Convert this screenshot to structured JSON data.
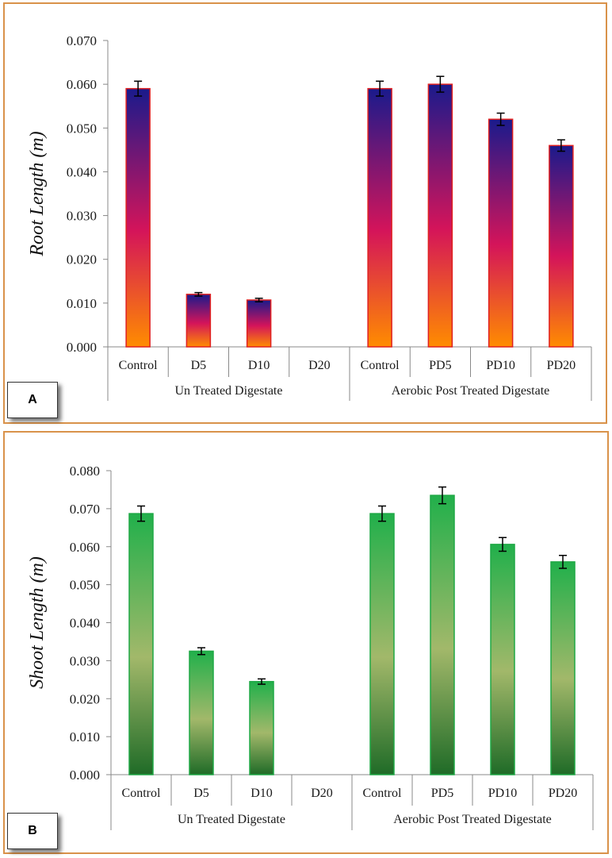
{
  "chart_data": [
    {
      "type": "bar",
      "panel_label": "A",
      "ylabel": "Root Length (m)",
      "ylim": [
        0,
        0.07
      ],
      "yticks": [
        "0.000",
        "0.010",
        "0.020",
        "0.030",
        "0.040",
        "0.050",
        "0.060",
        "0.070"
      ],
      "categories": [
        "Control",
        "D5",
        "D10",
        "D20",
        "Control",
        "PD5",
        "PD10",
        "PD20"
      ],
      "values": [
        0.059,
        0.012,
        0.0107,
        0,
        0.059,
        0.06,
        0.052,
        0.046
      ],
      "errors": [
        0.0017,
        0.0004,
        0.0004,
        0,
        0.0017,
        0.0018,
        0.0014,
        0.0013
      ],
      "groups": [
        {
          "label": "Un Treated Digestate",
          "count": 4
        },
        {
          "label": "Aerobic Post Treated Digestate",
          "count": 4
        }
      ],
      "colors": {
        "bar_top": "#1a1a8c",
        "bar_mid": "#d4145a",
        "bar_bottom": "#ff8c00",
        "bar_border": "#e02020"
      }
    },
    {
      "type": "bar",
      "panel_label": "B",
      "ylabel": "Shoot Length (m)",
      "ylim": [
        0,
        0.08
      ],
      "yticks": [
        "0.000",
        "0.010",
        "0.020",
        "0.030",
        "0.040",
        "0.050",
        "0.060",
        "0.070",
        "0.080"
      ],
      "categories": [
        "Control",
        "D5",
        "D10",
        "D20",
        "Control",
        "PD5",
        "PD10",
        "PD20"
      ],
      "values": [
        0.0687,
        0.0325,
        0.0245,
        0,
        0.0687,
        0.0735,
        0.0606,
        0.056
      ],
      "errors": [
        0.002,
        0.0009,
        0.0007,
        0,
        0.002,
        0.0022,
        0.0018,
        0.0017
      ],
      "groups": [
        {
          "label": "Un Treated Digestate",
          "count": 4
        },
        {
          "label": "Aerobic Post Treated Digestate",
          "count": 4
        }
      ],
      "colors": {
        "bar_top": "#21b04b",
        "bar_mid": "#a2b86a",
        "bar_bottom": "#1f6b27",
        "bar_border": "#1fa845"
      }
    }
  ]
}
